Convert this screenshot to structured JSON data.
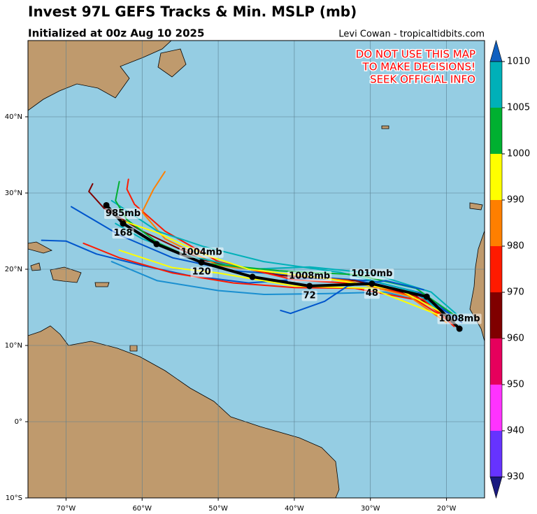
{
  "map": {
    "title": "Invest 97L GEFS Tracks & Min. MSLP (mb)",
    "subtitle": "Initialized at 00z Aug 10 2025",
    "credit": "Levi Cowan - tropicaltidbits.com",
    "warning": [
      "DO NOT USE THIS MAP",
      "TO MAKE DECISIONS!",
      "SEEK OFFICIAL INFO"
    ],
    "xlim": [
      -75,
      -15
    ],
    "ylim": [
      -10,
      50
    ],
    "xticks": [
      {
        "value": -70,
        "label": "70°W"
      },
      {
        "value": -60,
        "label": "60°W"
      },
      {
        "value": -50,
        "label": "50°W"
      },
      {
        "value": -40,
        "label": "40°W"
      },
      {
        "value": -30,
        "label": "30°W"
      },
      {
        "value": -20,
        "label": "20°W"
      }
    ],
    "yticks": [
      {
        "value": -10,
        "label": "10°S"
      },
      {
        "value": 0,
        "label": "0°"
      },
      {
        "value": 10,
        "label": "10°N"
      },
      {
        "value": 20,
        "label": "20°N"
      },
      {
        "value": 30,
        "label": "30°N"
      },
      {
        "value": 40,
        "label": "40°N"
      }
    ],
    "grid": true,
    "members": [
      {
        "color": "#0055cc",
        "lon": [
          -18,
          -23,
          -30,
          -38,
          -46,
          -54,
          -60,
          -66,
          -70,
          -73.2
        ],
        "lat": [
          13,
          16.8,
          18.5,
          18.8,
          18.2,
          19.2,
          20.5,
          22,
          23.7,
          23.8
        ]
      },
      {
        "color": "#0055cc",
        "lon": [
          -18.5,
          -24,
          -32,
          -40,
          -48,
          -56,
          -63,
          -69.3
        ],
        "lat": [
          13.5,
          16.8,
          18.6,
          19.2,
          19.8,
          21.5,
          24.5,
          28.2
        ]
      },
      {
        "color": "#1a8fd0",
        "lon": [
          -18,
          -22,
          -28,
          -36,
          -44,
          -50,
          -58,
          -64
        ],
        "lat": [
          12,
          15.5,
          17,
          16.8,
          16.7,
          17.2,
          18.5,
          21
        ]
      },
      {
        "color": "#ff1a00",
        "lon": [
          -19,
          -24,
          -32,
          -40,
          -48,
          -56,
          -63,
          -67.7
        ],
        "lat": [
          12.8,
          16,
          17.5,
          17.6,
          18.2,
          19.5,
          21.5,
          23.4
        ]
      },
      {
        "color": "#800000",
        "lon": [
          -19,
          -24,
          -32,
          -42,
          -52,
          -60,
          -65,
          -67,
          -66.5
        ],
        "lat": [
          13,
          16.5,
          18.5,
          19.2,
          21.2,
          25,
          28,
          30.2,
          31.2
        ]
      },
      {
        "color": "#ff1a00",
        "lon": [
          -19,
          -23,
          -30,
          -40,
          -50,
          -57,
          -61,
          -62,
          -61.8
        ],
        "lat": [
          12.5,
          16,
          18,
          18.6,
          21,
          25,
          28.5,
          30.5,
          31.8
        ]
      },
      {
        "color": "#ff7f00",
        "lon": [
          -20,
          -25,
          -33,
          -42,
          -50,
          -57,
          -60,
          -58.5,
          -57
        ],
        "lat": [
          13,
          16.5,
          18.5,
          19.5,
          20.5,
          24,
          27.5,
          30.5,
          32.8
        ]
      },
      {
        "color": "#00b0b8",
        "lon": [
          -18,
          -22,
          -30,
          -38,
          -46,
          -54,
          -60,
          -63.5
        ],
        "lat": [
          13.5,
          17,
          19.5,
          20.3,
          20,
          21.8,
          24,
          26
        ]
      },
      {
        "color": "#00b0b8",
        "lon": [
          -19,
          -24,
          -34,
          -44,
          -52,
          -58,
          -64
        ],
        "lat": [
          13,
          17,
          19.6,
          21,
          23,
          25,
          29
        ]
      },
      {
        "color": "#00b030",
        "lon": [
          -19,
          -24,
          -32,
          -42,
          -52,
          -58,
          -62,
          -63.5,
          -63
        ],
        "lat": [
          14,
          17.5,
          19.3,
          19.8,
          20.8,
          23.5,
          26.5,
          29,
          31.5
        ]
      },
      {
        "color": "#ffff00",
        "lon": [
          -20,
          -26,
          -36,
          -46,
          -52,
          -58,
          -63
        ],
        "lat": [
          14,
          17.2,
          18.8,
          20,
          22,
          24.8,
          26.5
        ]
      },
      {
        "color": "#ffff00",
        "lon": [
          -21,
          -30,
          -40,
          -50,
          -56,
          -63
        ],
        "lat": [
          14,
          17.5,
          17.8,
          19.5,
          20.2,
          22.5
        ]
      },
      {
        "color": "#0055cc",
        "lon": [
          -41.8,
          -40.5,
          -36,
          -33,
          -28,
          -23
        ],
        "lat": [
          14.6,
          14.2,
          15.8,
          17.8,
          18.5,
          17.3
        ]
      }
    ],
    "mean_track": {
      "color": "#000000",
      "lon": [
        -18.3,
        -22.6,
        -29.8,
        -38.0,
        -45.5,
        -52.2,
        -58.1,
        -62.5,
        -64.7
      ],
      "lat": [
        12.2,
        16.4,
        18.1,
        17.8,
        19.0,
        20.9,
        23.3,
        26.0,
        28.4
      ],
      "pressure_labels": [
        "1008mb",
        null,
        "1010mb",
        "1008mb",
        null,
        "1004mb",
        null,
        "985mb",
        null
      ],
      "hour_labels": [
        null,
        null,
        "48",
        "72",
        null,
        "120",
        null,
        "168",
        null
      ]
    },
    "colorbar": {
      "levels": [
        930,
        940,
        950,
        960,
        970,
        980,
        990,
        1000,
        1005,
        1010
      ],
      "colors": [
        "#6633ff",
        "#ff33ff",
        "#e6005c",
        "#800000",
        "#ff1a00",
        "#ff7f00",
        "#ffff00",
        "#00b030",
        "#00b0b8"
      ],
      "under_color": "#1a1a80",
      "over_color": "#1060c0"
    }
  }
}
